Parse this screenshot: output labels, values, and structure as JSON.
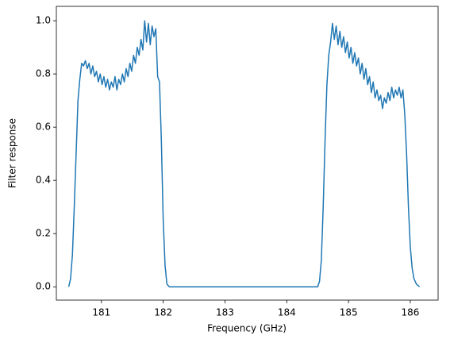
{
  "chart_data": {
    "type": "line",
    "xlabel": "Frequency (GHz)",
    "ylabel": "Filter response",
    "xlim": [
      180.27,
      186.45
    ],
    "ylim": [
      -0.05,
      1.054
    ],
    "xticks": [
      181,
      182,
      183,
      184,
      185,
      186
    ],
    "yticks": [
      {
        "value": 0,
        "label": "0.0"
      },
      {
        "value": 0.2,
        "label": "0.2"
      },
      {
        "value": 0.4,
        "label": "0.4"
      },
      {
        "value": 0.6,
        "label": "0.6"
      },
      {
        "value": 0.8,
        "label": "0.8"
      },
      {
        "value": 1,
        "label": "1.0"
      }
    ],
    "color": "#1f77b4",
    "x": [
      180.47,
      180.5,
      180.53,
      180.56,
      180.59,
      180.62,
      180.65,
      180.68,
      180.71,
      180.74,
      180.77,
      180.8,
      180.83,
      180.86,
      180.89,
      180.92,
      180.95,
      180.98,
      181.01,
      181.04,
      181.07,
      181.1,
      181.13,
      181.16,
      181.19,
      181.22,
      181.25,
      181.28,
      181.31,
      181.34,
      181.37,
      181.4,
      181.43,
      181.46,
      181.49,
      181.52,
      181.55,
      181.58,
      181.61,
      181.64,
      181.67,
      181.7,
      181.73,
      181.76,
      181.79,
      181.82,
      181.85,
      181.88,
      181.91,
      181.94,
      181.97,
      182.0,
      182.03,
      182.06,
      182.1,
      184.5,
      184.53,
      184.56,
      184.59,
      184.62,
      184.65,
      184.68,
      184.71,
      184.74,
      184.77,
      184.8,
      184.83,
      184.86,
      184.89,
      184.92,
      184.95,
      184.98,
      185.01,
      185.04,
      185.07,
      185.1,
      185.13,
      185.16,
      185.19,
      185.22,
      185.25,
      185.28,
      185.31,
      185.34,
      185.37,
      185.4,
      185.43,
      185.46,
      185.49,
      185.52,
      185.55,
      185.58,
      185.61,
      185.64,
      185.67,
      185.7,
      185.73,
      185.76,
      185.79,
      185.82,
      185.85,
      185.88,
      185.91,
      185.94,
      185.97,
      186.0,
      186.03,
      186.06,
      186.1,
      186.15
    ],
    "values": [
      0.0,
      0.03,
      0.12,
      0.3,
      0.5,
      0.7,
      0.78,
      0.84,
      0.83,
      0.85,
      0.82,
      0.84,
      0.8,
      0.83,
      0.79,
      0.81,
      0.77,
      0.8,
      0.76,
      0.79,
      0.75,
      0.78,
      0.74,
      0.77,
      0.75,
      0.79,
      0.74,
      0.78,
      0.76,
      0.8,
      0.77,
      0.82,
      0.79,
      0.84,
      0.81,
      0.87,
      0.84,
      0.9,
      0.87,
      0.93,
      0.89,
      1.0,
      0.92,
      0.99,
      0.91,
      0.98,
      0.94,
      0.97,
      0.79,
      0.77,
      0.55,
      0.25,
      0.08,
      0.01,
      0.0,
      0.0,
      0.02,
      0.1,
      0.3,
      0.55,
      0.76,
      0.87,
      0.92,
      0.99,
      0.93,
      0.98,
      0.91,
      0.96,
      0.9,
      0.94,
      0.88,
      0.92,
      0.86,
      0.9,
      0.84,
      0.88,
      0.83,
      0.86,
      0.8,
      0.84,
      0.78,
      0.82,
      0.76,
      0.79,
      0.73,
      0.77,
      0.71,
      0.74,
      0.7,
      0.72,
      0.67,
      0.71,
      0.69,
      0.73,
      0.7,
      0.75,
      0.71,
      0.74,
      0.72,
      0.75,
      0.71,
      0.74,
      0.65,
      0.5,
      0.3,
      0.15,
      0.07,
      0.03,
      0.01,
      0.0
    ]
  }
}
